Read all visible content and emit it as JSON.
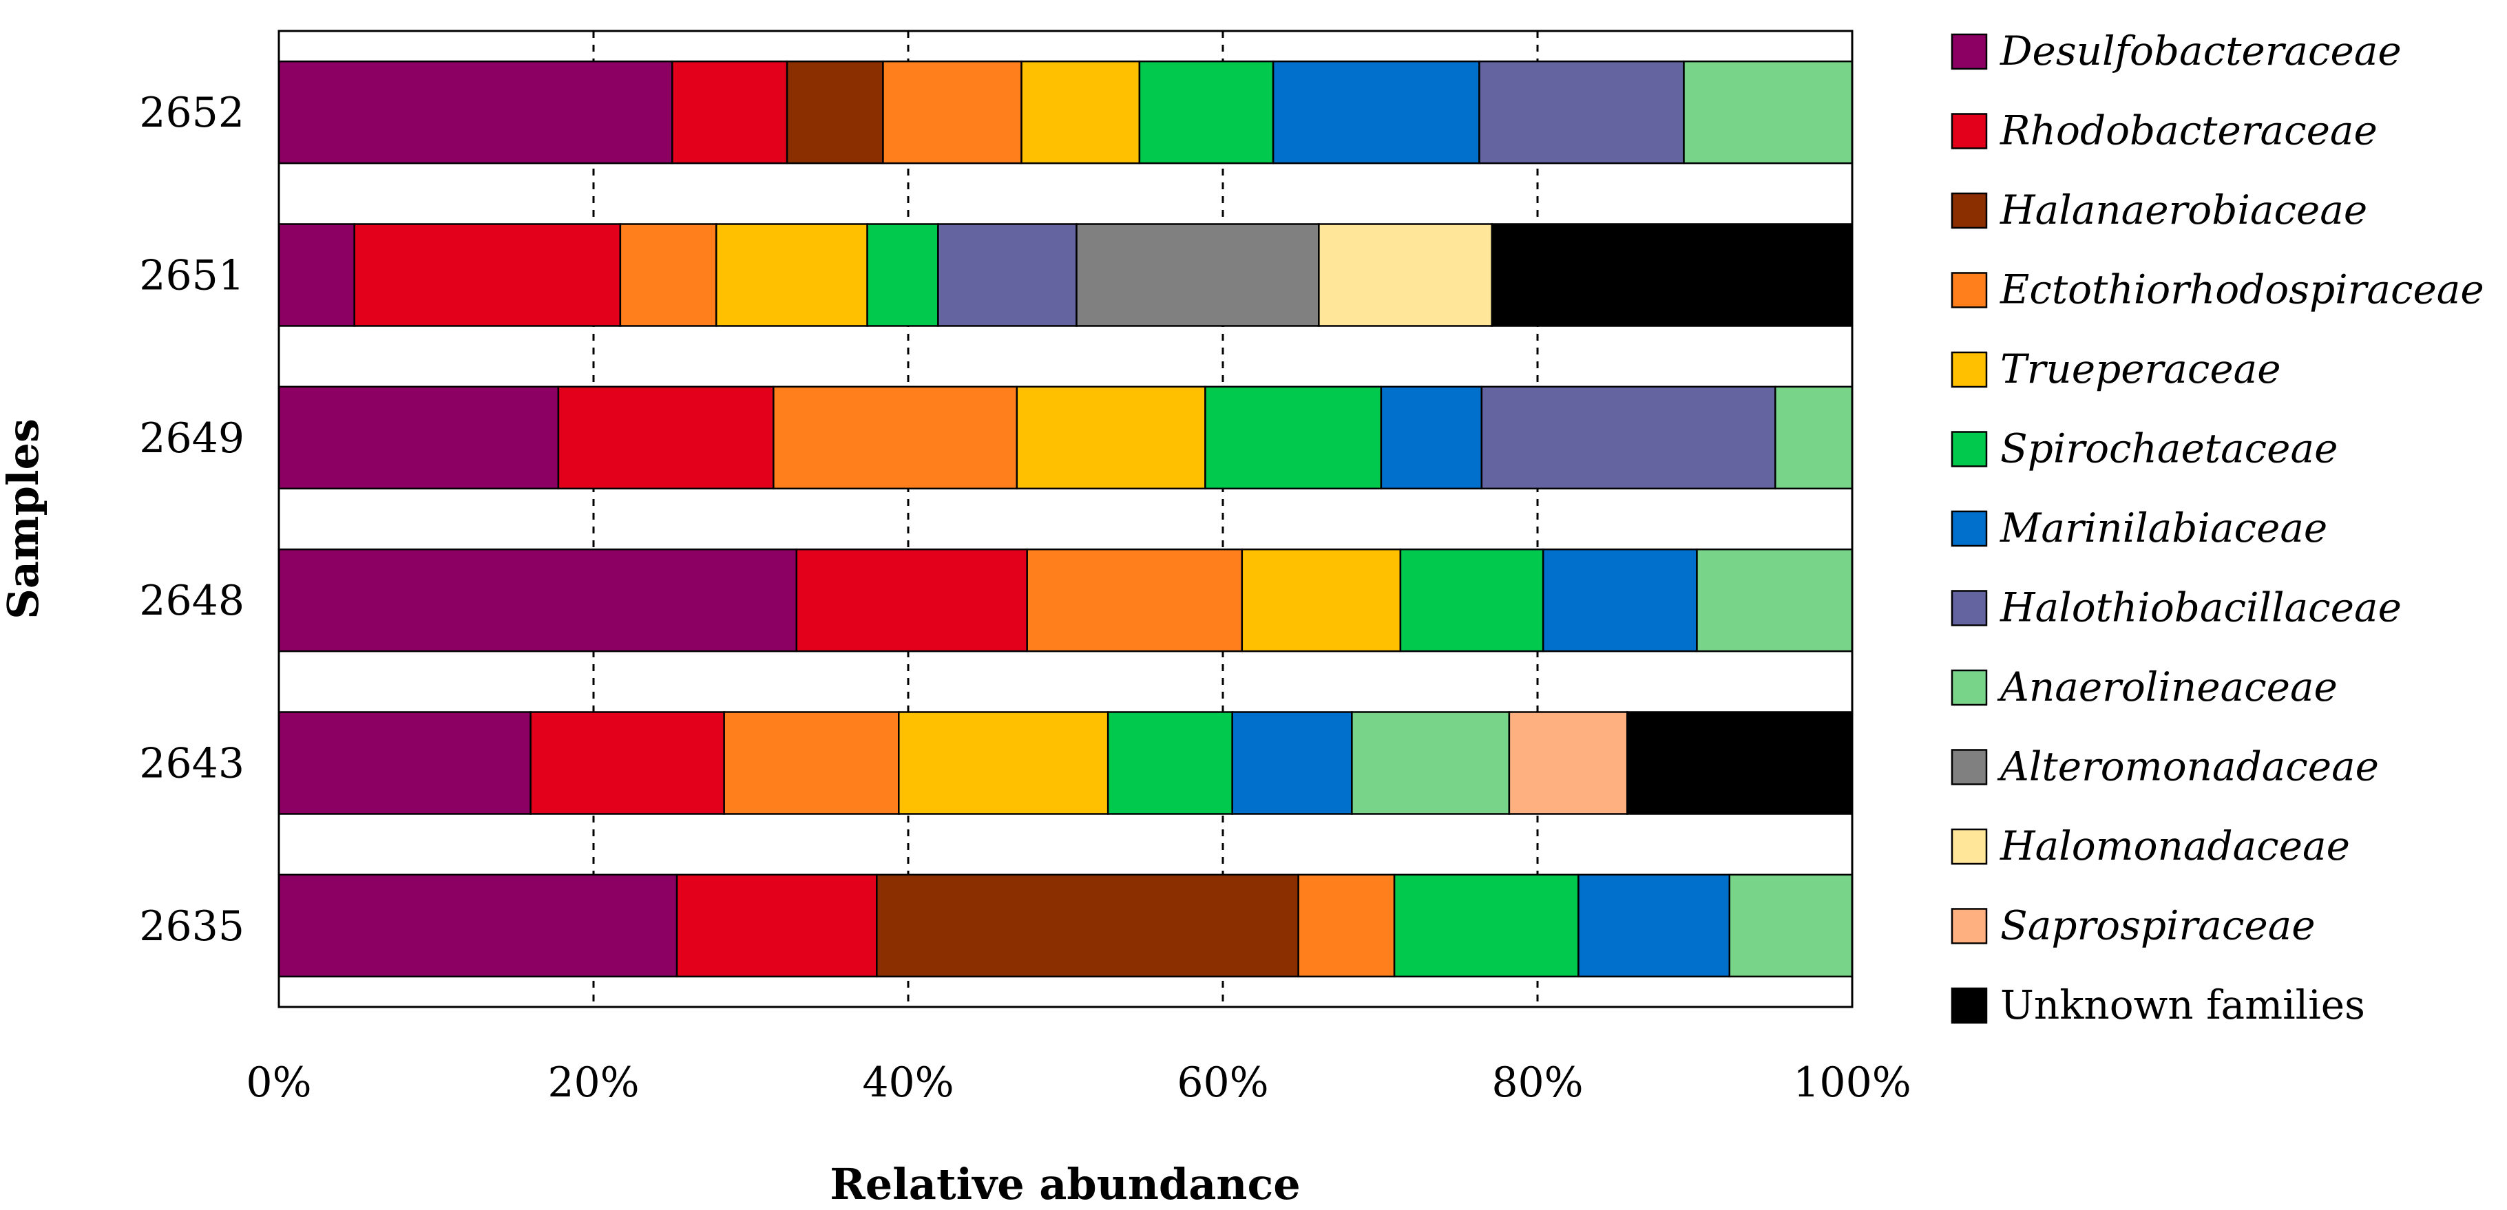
{
  "chart_data": {
    "type": "bar",
    "orientation": "horizontal",
    "stacked": true,
    "normalized": true,
    "title": "",
    "xlabel": "Relative abundance",
    "ylabel": "Samples",
    "xlim": [
      0,
      100
    ],
    "x_ticks": [
      "0%",
      "20%",
      "40%",
      "60%",
      "80%",
      "100%"
    ],
    "grid": "vertical dashed",
    "legend_position": "right",
    "categories": [
      "2652",
      "2651",
      "2649",
      "2648",
      "2643",
      "2635"
    ],
    "series": [
      {
        "name": "Desulfobacteraceae",
        "italic": true,
        "color": "#8B0062",
        "values": [
          25.0,
          4.8,
          17.8,
          33.0,
          16.0,
          25.3
        ]
      },
      {
        "name": "Rhodobacteraceae",
        "italic": true,
        "color": "#E3001B",
        "values": [
          7.3,
          16.9,
          13.7,
          14.7,
          12.3,
          12.7
        ]
      },
      {
        "name": "Halanaerobiaceae",
        "italic": true,
        "color": "#8B2E00",
        "values": [
          6.1,
          0,
          0,
          0,
          0,
          26.8
        ]
      },
      {
        "name": "Ectothiorhodospiraceae",
        "italic": true,
        "color": "#FF7F1C",
        "values": [
          8.8,
          6.1,
          15.5,
          13.7,
          11.1,
          6.1
        ]
      },
      {
        "name": "Trueperaceae",
        "italic": true,
        "color": "#FFC000",
        "values": [
          7.5,
          9.6,
          12.0,
          10.1,
          13.3,
          0
        ]
      },
      {
        "name": "Spirochaetaceae",
        "italic": true,
        "color": "#00C94E",
        "values": [
          8.5,
          4.5,
          11.2,
          9.1,
          7.9,
          11.7
        ]
      },
      {
        "name": "Marinilabiaceae",
        "italic": true,
        "color": "#0070CC",
        "values": [
          13.1,
          0,
          6.4,
          9.8,
          7.6,
          9.6
        ]
      },
      {
        "name": "Halothiobacillaceae",
        "italic": true,
        "color": "#6464A0",
        "values": [
          13.0,
          8.8,
          18.7,
          0,
          0,
          0
        ]
      },
      {
        "name": "Anaerolineaceae",
        "italic": true,
        "color": "#77D488",
        "values": [
          10.7,
          0,
          4.9,
          9.9,
          10.0,
          7.8
        ]
      },
      {
        "name": "Alteromonadaceae",
        "italic": true,
        "color": "#808080",
        "values": [
          0,
          15.4,
          0,
          0,
          0,
          0
        ]
      },
      {
        "name": "Halomonadaceae",
        "italic": true,
        "color": "#FFE699",
        "values": [
          0,
          11.0,
          0,
          0,
          0,
          0
        ]
      },
      {
        "name": "Saprospiraceae",
        "italic": true,
        "color": "#FFB080",
        "values": [
          0,
          0,
          0,
          0,
          7.5,
          0
        ]
      },
      {
        "name": "Unknown families",
        "italic": false,
        "color": "#000000",
        "values": [
          0,
          22.9,
          0,
          0,
          14.3,
          0
        ]
      }
    ]
  }
}
